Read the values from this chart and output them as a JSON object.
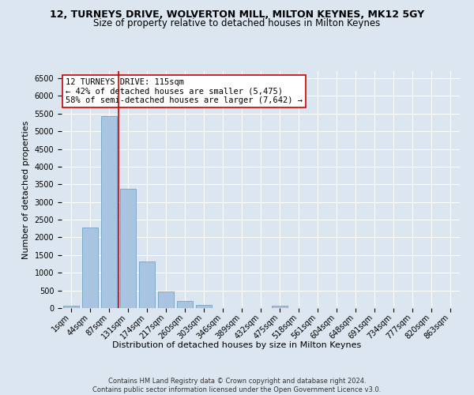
{
  "title": "12, TURNEYS DRIVE, WOLVERTON MILL, MILTON KEYNES, MK12 5GY",
  "subtitle": "Size of property relative to detached houses in Milton Keynes",
  "xlabel": "Distribution of detached houses by size in Milton Keynes",
  "ylabel": "Number of detached properties",
  "categories": [
    "1sqm",
    "44sqm",
    "87sqm",
    "131sqm",
    "174sqm",
    "217sqm",
    "260sqm",
    "303sqm",
    "346sqm",
    "389sqm",
    "432sqm",
    "475sqm",
    "518sqm",
    "561sqm",
    "604sqm",
    "648sqm",
    "691sqm",
    "734sqm",
    "777sqm",
    "820sqm",
    "863sqm"
  ],
  "bar_values": [
    75,
    2270,
    5430,
    3380,
    1310,
    475,
    210,
    95,
    0,
    0,
    0,
    60,
    0,
    0,
    0,
    0,
    0,
    0,
    0,
    0,
    0
  ],
  "bar_color": "#a8c4e0",
  "bar_edge_color": "#6699bb",
  "vline_color": "#cc0000",
  "annotation_text": "12 TURNEYS DRIVE: 115sqm\n← 42% of detached houses are smaller (5,475)\n58% of semi-detached houses are larger (7,642) →",
  "annotation_box_color": "#ffffff",
  "annotation_box_edge_color": "#cc0000",
  "ylim": [
    0,
    6700
  ],
  "yticks": [
    0,
    500,
    1000,
    1500,
    2000,
    2500,
    3000,
    3500,
    4000,
    4500,
    5000,
    5500,
    6000,
    6500
  ],
  "bg_color": "#dce6f0",
  "plot_bg_color": "#dce6f0",
  "footer": "Contains HM Land Registry data © Crown copyright and database right 2024.\nContains public sector information licensed under the Open Government Licence v3.0.",
  "title_fontsize": 9,
  "subtitle_fontsize": 8.5,
  "axis_label_fontsize": 8,
  "tick_fontsize": 7,
  "annotation_fontsize": 7.5
}
